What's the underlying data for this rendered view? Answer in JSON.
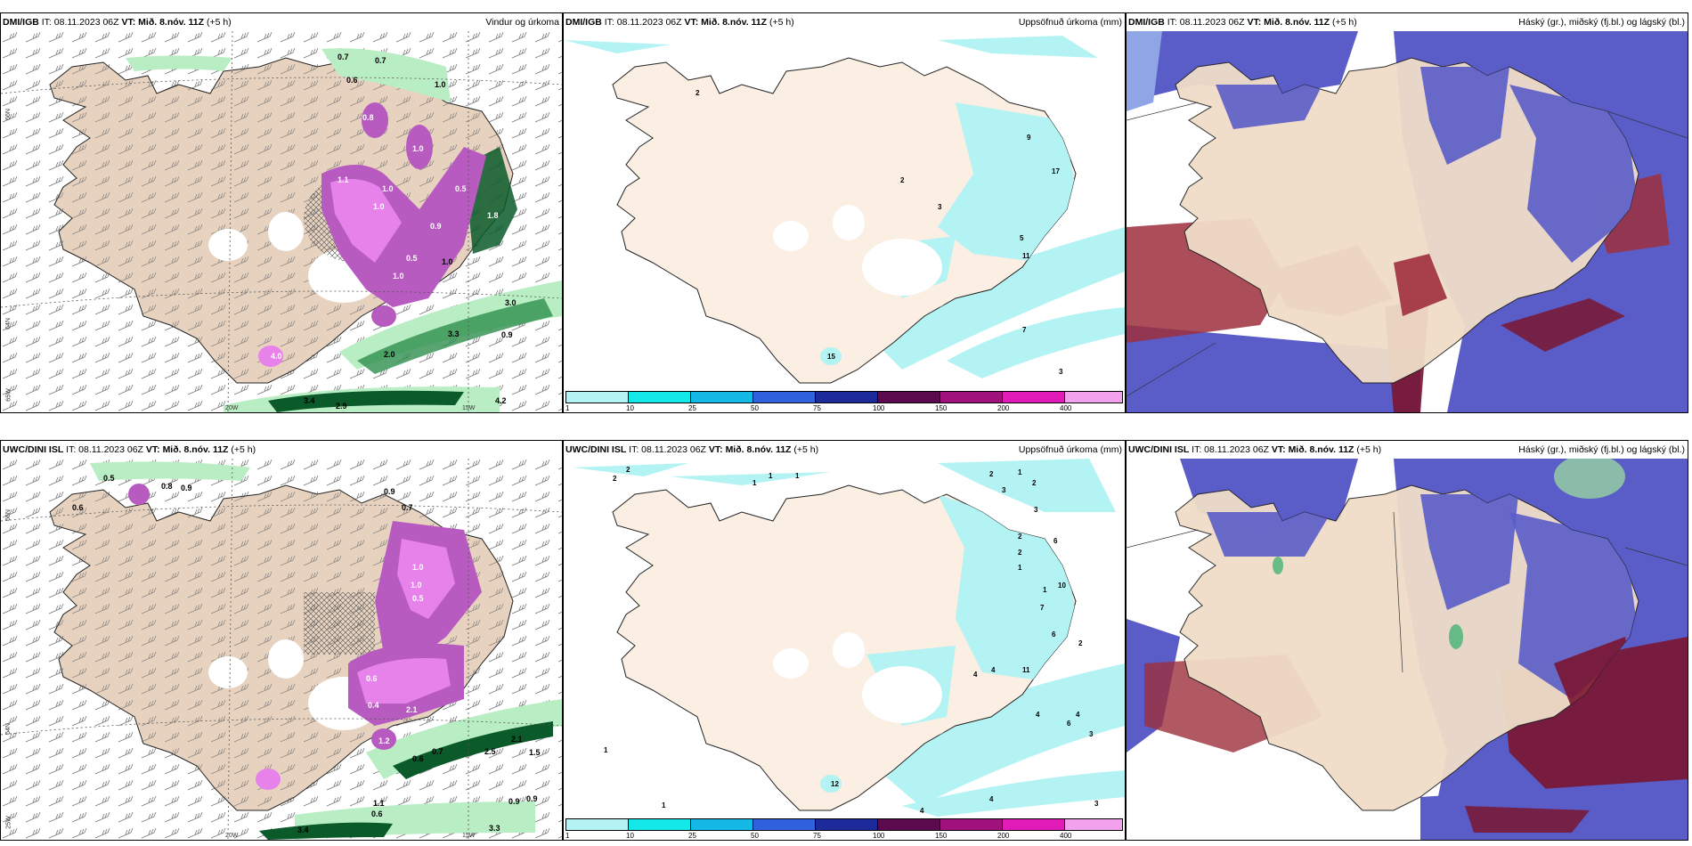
{
  "colors": {
    "land": "#f8ece0",
    "windland": "#e7d2bf",
    "precip_green_light": "#b9edc3",
    "precip_green_dark": "#0b5a2a",
    "precip_purple": "#b75bc0",
    "precip_pink": "#e782ea",
    "accum_cyan": "#b3f3f3",
    "cloud_high": "#5a5cc8",
    "cloud_mid": "#8fa5e6",
    "cloud_low": "#9e2f3c"
  },
  "panels": [
    {
      "source": "DMI/IGB",
      "it": "IT: 08.11.2023 06Z",
      "vt_label": "VT:",
      "vt_value": "Mið. 8.nóv. 11Z",
      "step": "(+5 h)",
      "title": "Vindur og úrkoma"
    },
    {
      "source": "DMI/IGB",
      "it": "IT: 08.11.2023 06Z",
      "vt_label": "VT:",
      "vt_value": "Mið. 8.nóv. 11Z",
      "step": "(+5 h)",
      "title": "Uppsöfnuð úrkoma (mm)"
    },
    {
      "source": "DMI/IGB",
      "it": "IT: 08.11.2023 06Z",
      "vt_label": "VT:",
      "vt_value": "Mið. 8.nóv. 11Z",
      "step": "(+5 h)",
      "title": "Háský (gr.), miðský (fj.bl.) og lágský (bl.)"
    },
    {
      "source": "UWC/DINI ISL",
      "it": "IT: 08.11.2023 06Z",
      "vt_label": "VT:",
      "vt_value": "Mið. 8.nóv. 11Z",
      "step": "(+5 h)",
      "title": ""
    },
    {
      "source": "UWC/DINI ISL",
      "it": "IT: 08.11.2023 06Z",
      "vt_label": "VT:",
      "vt_value": "Mið. 8.nóv. 11Z",
      "step": "(+5 h)",
      "title": "Uppsöfnuð úrkoma (mm)"
    },
    {
      "source": "UWC/DINI ISL",
      "it": "IT: 08.11.2023 06Z",
      "vt_label": "VT:",
      "vt_value": "Mið. 8.nóv. 11Z",
      "step": "(+5 h)",
      "title": "Háský (gr.), miðský (fj.bl.) og lágský (bl.)"
    }
  ],
  "axis_labels": {
    "lat66": "66N",
    "lat64": "64N",
    "lat65w": "65W",
    "lon20w": "20W",
    "lon15w": "15W",
    "lat25w": "25W"
  },
  "colorbar": {
    "ticks": [
      "1",
      "10",
      "25",
      "50",
      "75",
      "100",
      "150",
      "200",
      "400"
    ],
    "colors": [
      "#b3f3f3",
      "#15e8e8",
      "#14b9e6",
      "#3162dd",
      "#1c2a9a",
      "#5b0a4d",
      "#a0117d",
      "#e01bb8",
      "#f2a2ec"
    ]
  },
  "wind_precip_top": [
    "0.7",
    "0.7",
    "0.6",
    "1.0",
    "0.8",
    "1.0",
    "1.0",
    "1.1",
    "1.0",
    "0.9",
    "1.0",
    "0.5",
    "0.5",
    "1.8",
    "3.0",
    "3.3",
    "0.9",
    "2.0",
    "3.4",
    "2.9",
    "4.2",
    "1.0",
    "4.0"
  ],
  "wind_precip_bottom": [
    "0.5",
    "0.6",
    "0.8",
    "0.9",
    "0.9",
    "0.7",
    "1.0",
    "1.0",
    "0.5",
    "0.6",
    "0.4",
    "2.1",
    "1.2",
    "0.7",
    "0.6",
    "2.5",
    "2.1",
    "1.5",
    "1.1",
    "0.6",
    "0.9",
    "0.9",
    "3.4",
    "3.3"
  ],
  "accum_top": [
    "2",
    "9",
    "17",
    "2",
    "3",
    "11",
    "5",
    "7",
    "3",
    "15"
  ],
  "accum_bottom": [
    "2",
    "2",
    "1",
    "1",
    "1",
    "2",
    "3",
    "1",
    "2",
    "3",
    "6",
    "2",
    "10",
    "1",
    "2",
    "7",
    "1",
    "2",
    "6",
    "11",
    "4",
    "4",
    "4",
    "12",
    "4",
    "3",
    "6",
    "4",
    "4",
    "1",
    "1",
    "3"
  ]
}
